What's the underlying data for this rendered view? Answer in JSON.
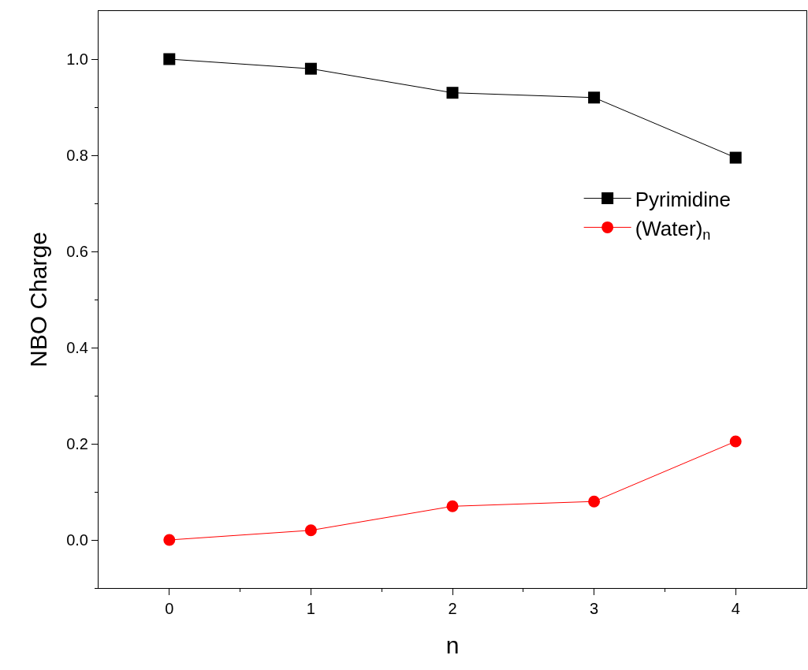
{
  "chart_data": {
    "type": "line",
    "xlabel": "n",
    "ylabel": "NBO Charge",
    "x": [
      0,
      1,
      2,
      3,
      4
    ],
    "series": [
      {
        "name": "Pyrimidine",
        "color": "#000000",
        "marker": "square",
        "values": [
          1.0,
          0.98,
          0.93,
          0.92,
          0.795
        ]
      },
      {
        "name": "(Water)$_{n}$",
        "color": "#ff0000",
        "marker": "circle",
        "values": [
          0.0,
          0.02,
          0.07,
          0.08,
          0.205
        ]
      }
    ],
    "xlim": [
      -0.5,
      4.5
    ],
    "xticks": [
      0,
      {
        "value": 0.5,
        "label": null
      },
      1,
      {
        "value": 1.5,
        "label": null
      },
      2,
      {
        "value": 2.5,
        "label": null
      },
      3,
      {
        "value": 3.5,
        "label": null
      },
      4
    ],
    "ylim": [
      -0.1,
      1.1
    ],
    "yticks": [
      {
        "value": -0.1,
        "label": null
      },
      {
        "value": 0.0,
        "label": "0.0"
      },
      {
        "value": 0.1,
        "label": null
      },
      0.2,
      {
        "value": 0.3,
        "label": null
      },
      0.4,
      {
        "value": 0.5,
        "label": null
      },
      0.6,
      {
        "value": 0.7,
        "label": null
      },
      0.8,
      {
        "value": 0.9,
        "label": null
      },
      {
        "value": 1.0,
        "label": "1.0"
      }
    ],
    "grid": false,
    "legend": "right",
    "line_style": "solid"
  }
}
